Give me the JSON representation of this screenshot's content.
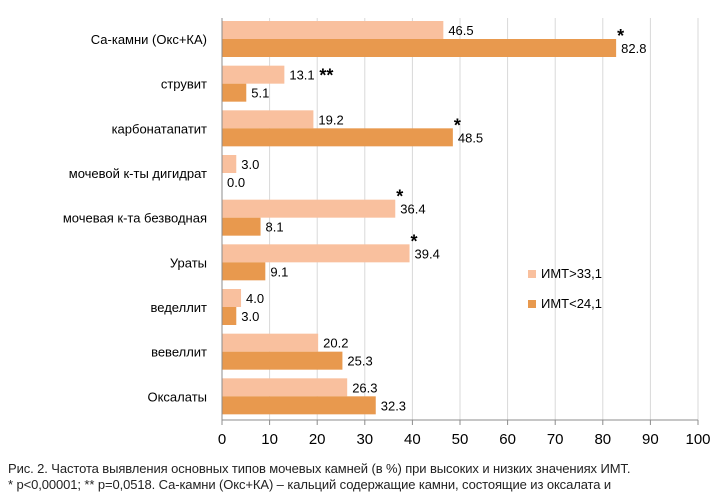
{
  "chart_data": {
    "type": "bar",
    "orientation": "horizontal",
    "categories": [
      "Са-камни (Окс+КА)",
      "струвит",
      "карбонатапатит",
      "мочевой к-ты дигидрат",
      "мочевая к-та безводная",
      "Ураты",
      "веделлит",
      "вевеллит",
      "Оксалаты"
    ],
    "series": [
      {
        "name": "ИМТ>33,1",
        "color": "#f9c09e",
        "values": [
          46.5,
          13.1,
          19.2,
          3.0,
          36.4,
          39.4,
          4.0,
          20.2,
          26.3
        ],
        "labels": [
          "46.5",
          "13.1",
          "19.2",
          "3.0",
          "36.4",
          "39.4",
          "4.0",
          "20.2",
          "26.3"
        ]
      },
      {
        "name": "ИМТ<24,1",
        "color": "#e8994e",
        "values": [
          82.8,
          5.1,
          48.5,
          0.0,
          8.1,
          9.1,
          3.0,
          25.3,
          32.3
        ],
        "labels": [
          "82.8",
          "5.1",
          "48.5",
          "0.0",
          "8.1",
          "9.1",
          "3.0",
          "25.3",
          "32.3"
        ]
      }
    ],
    "annotations": [
      {
        "category": "Са-камни (Окс+КА)",
        "text": "*"
      },
      {
        "category": "струвит",
        "text": "**"
      },
      {
        "category": "карбонатапатит",
        "text": "*"
      },
      {
        "category": "мочевая к-та безводная",
        "text": "*"
      },
      {
        "category": "Ураты",
        "text": "*"
      }
    ],
    "xlim": [
      0,
      100
    ],
    "xticks": [
      0,
      10,
      20,
      30,
      40,
      50,
      60,
      70,
      80,
      90,
      100
    ],
    "grid": true,
    "legend": "right"
  },
  "caption": {
    "line1": "Рис. 2. Частота выявления основных типов мочевых камней (в %) при высоких и низких значениях ИМТ.",
    "line2": "* p<0,00001;  ** p=0,0518. Са-камни (Окс+КА) – кальций содержащие камни, состоящие из оксалата и"
  }
}
